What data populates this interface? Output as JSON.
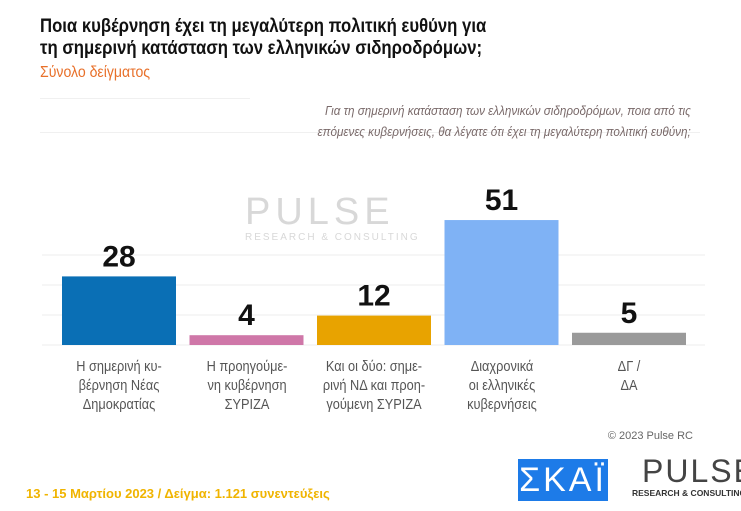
{
  "title_line1": "Ποια κυβέρνηση έχει τη μεγαλύτερη πολιτική ευθύνη για",
  "title_line2": "τη σημερινή κατάσταση των ελληνικών σιδηροδρόμων;",
  "subtitle": "Σύνολο δείγματος",
  "question_line1": "Για τη σημερινή κατάσταση των ελληνικών σιδηροδρόμων, ποια από τις",
  "question_line2": "επόμενες κυβερνήσεις, θα λέγατε ότι έχει τη μεγαλύτερη πολιτική ευθύνη;",
  "watermark": {
    "word": "PULSE",
    "tagline": "RESEARCH & CONSULTING"
  },
  "chart_data": {
    "type": "bar",
    "categories": [
      [
        "Η σημερινή κυ-",
        "βέρνηση Νέας",
        "Δημοκρατίας"
      ],
      [
        "Η προηγούμε-",
        "νη κυβέρνηση",
        "ΣΥΡΙΖΑ"
      ],
      [
        "Και οι δύο: σημε-",
        "ρινή ΝΔ και προη-",
        "γούμενη ΣΥΡΙΖΑ"
      ],
      [
        "Διαχρονικά",
        "οι ελληνικές",
        "κυβερνήσεις"
      ],
      [
        "ΔΓ /",
        "ΔΑ"
      ]
    ],
    "values": [
      28,
      4,
      12,
      51,
      5
    ],
    "colors": [
      "#0a6fb5",
      "#cf77a8",
      "#e8a300",
      "#7fb2f5",
      "#9a9a9a"
    ],
    "ylim": [
      0,
      60
    ],
    "grid": true
  },
  "copyright": "© 2023 Pulse RC",
  "footer": "13 - 15  Μαρτίου  2023  /  Δείγμα:  1.121 συνεντεύξεις",
  "logos": {
    "skai": "ΣΚΑΪ",
    "pulse": "PULSE",
    "pulse_tagline": "RESEARCH & CONSULTING"
  }
}
